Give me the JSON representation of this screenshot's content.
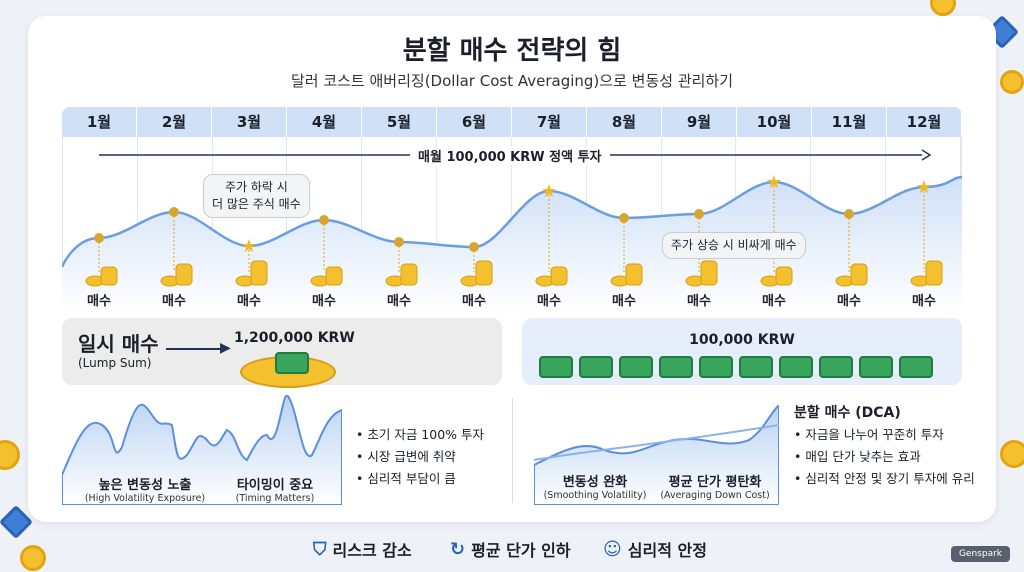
{
  "header": {
    "title": "분할 매수 전략의 힘",
    "subtitle": "달러 코스트 애버리징(Dollar Cost Averaging)으로 변동성 관리하기"
  },
  "timeline": {
    "months": [
      "1월",
      "2월",
      "3월",
      "4월",
      "5월",
      "6월",
      "7월",
      "8월",
      "9월",
      "10월",
      "11월",
      "12월"
    ],
    "arrow_label": "매월 100,000 KRW 정액 투자",
    "buy_label": "매수",
    "bubble_down": [
      "주가 하락 시",
      "더 많은 주식 매수"
    ],
    "bubble_up": "주가 상승 시 비싸게 매수",
    "accent": "#2a63b5"
  },
  "lump": {
    "title": "일시 매수",
    "title_en": "(Lump Sum)",
    "amount": "1,200,000 KRW",
    "labels": [
      {
        "ko": "높은 변동성 노출",
        "en": "(High Volatility Exposure)"
      },
      {
        "ko": "타이밍이 중요",
        "en": "(Timing Matters)"
      }
    ],
    "bullets": [
      "• 초기 자금 100% 투자",
      "• 시장 급변에 취약",
      "• 심리적 부담이 큼"
    ]
  },
  "dca": {
    "amount": "100,000 KRW",
    "title": "분할 매수 (DCA)",
    "labels": [
      {
        "ko": "변동성 완화",
        "en": "(Smoothing Volatility)"
      },
      {
        "ko": "평균 단가 평탄화",
        "en": "(Averaging Down Cost)"
      }
    ],
    "bullets": [
      "• 자금을 나누어 꾸준히 투자",
      "• 매입 단가 낮추는 효과",
      "• 심리적 안정 및 장기 투자에 유리"
    ]
  },
  "footer": [
    {
      "icon": "shield-icon",
      "label": "리스크 감소"
    },
    {
      "icon": "chart-down-icon",
      "label": "평균 단가 인하"
    },
    {
      "icon": "head-icon",
      "label": "심리적 안정"
    }
  ],
  "watermark": "Genspark"
}
